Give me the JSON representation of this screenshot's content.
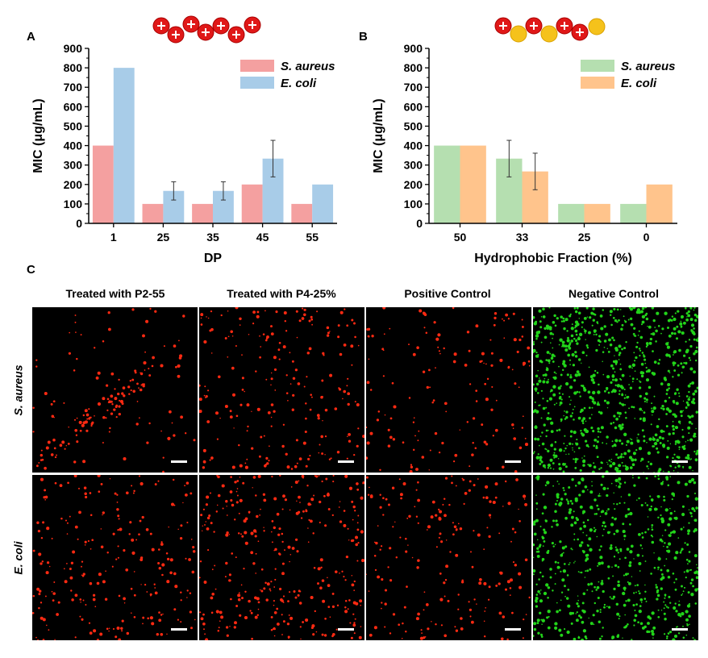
{
  "panels": {
    "a": "A",
    "b": "B",
    "c": "C"
  },
  "chart_data": [
    {
      "type": "bar",
      "panel": "A",
      "xlabel": "DP",
      "ylabel": "MIC (μg/mL)",
      "categories": [
        "1",
        "25",
        "35",
        "45",
        "55"
      ],
      "ylim": [
        0,
        900
      ],
      "yticks": [
        0,
        100,
        200,
        300,
        400,
        500,
        600,
        700,
        800,
        900
      ],
      "legend_position": "top-right",
      "series": [
        {
          "name": "S. aureus",
          "color": "#f4a0a0",
          "values": [
            400,
            100,
            100,
            200,
            100
          ],
          "errors": [
            0,
            0,
            0,
            0,
            0
          ]
        },
        {
          "name": "E. coli",
          "color": "#a8cce8",
          "values": [
            800,
            167,
            167,
            333,
            200
          ],
          "errors": [
            0,
            47,
            47,
            94,
            0
          ]
        }
      ],
      "icon": "chain of 7 red positively charged monomer beads"
    },
    {
      "type": "bar",
      "panel": "B",
      "xlabel": "Hydrophobic Fraction (%)",
      "ylabel": "MIC (μg/mL)",
      "categories": [
        "50",
        "33",
        "25",
        "0"
      ],
      "ylim": [
        0,
        900
      ],
      "yticks": [
        0,
        100,
        200,
        300,
        400,
        500,
        600,
        700,
        800,
        900
      ],
      "legend_position": "top-right",
      "series": [
        {
          "name": "S. aureus",
          "color": "#b5dfb0",
          "values": [
            400,
            333,
            100,
            100
          ],
          "errors": [
            0,
            94,
            0,
            0
          ]
        },
        {
          "name": "E. coli",
          "color": "#ffc48c",
          "values": [
            400,
            267,
            100,
            200
          ],
          "errors": [
            0,
            94,
            0,
            0
          ]
        }
      ],
      "icon": "chain of red charged beads alternating with yellow hydrophobic beads"
    }
  ],
  "microscopy": {
    "columns": [
      "Treated with P2-55",
      "Treated with P4-25%",
      "Positive Control",
      "Negative Control"
    ],
    "rows": [
      "S. aureus",
      "E. coli"
    ],
    "colors": {
      "dead": "#ff2a12",
      "live": "#22d41a",
      "scale_bar": "#ffffff"
    },
    "grid_colors": [
      [
        "red",
        "red",
        "red",
        "green"
      ],
      [
        "red",
        "red",
        "red",
        "green"
      ]
    ]
  }
}
